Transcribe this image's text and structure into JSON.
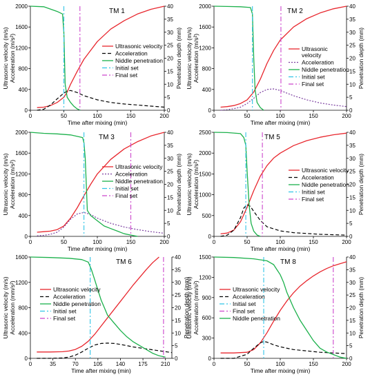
{
  "chart_data": [
    {
      "type": "line",
      "title": "TM 1",
      "xlabel": "Time after mixing (min)",
      "ylabel": "Ultrasonic velocity (m/s)\nAcceleration (m/s²)",
      "y2label": "Penetration depth (mm)",
      "xlim": [
        0,
        200
      ],
      "ylim": [
        0,
        2000
      ],
      "y2lim": [
        0,
        40
      ],
      "xticks": [
        0,
        50,
        100,
        150,
        200
      ],
      "yticks": [
        0,
        400,
        800,
        1200,
        1600,
        2000
      ],
      "y2ticks": [
        0,
        5,
        10,
        15,
        20,
        25,
        30,
        35,
        40
      ],
      "legend_position": "center-right",
      "series": [
        {
          "name": "Ultrasonic velocity",
          "axis": "left",
          "style": "solid",
          "color": "#e8262d",
          "x": [
            10,
            20,
            30,
            40,
            50,
            55,
            60,
            70,
            80,
            100,
            120,
            140,
            160,
            180,
            200
          ],
          "y": [
            50,
            60,
            90,
            150,
            250,
            350,
            500,
            750,
            980,
            1320,
            1560,
            1720,
            1850,
            1940,
            2000
          ]
        },
        {
          "name": "Acceleration",
          "axis": "left",
          "style": "dashed",
          "color": "#000000",
          "x": [
            10,
            20,
            30,
            40,
            50,
            55,
            60,
            70,
            80,
            100,
            120,
            140,
            160,
            180,
            200
          ],
          "y": [
            0,
            20,
            100,
            220,
            330,
            370,
            380,
            340,
            280,
            200,
            150,
            120,
            100,
            80,
            60
          ]
        },
        {
          "name": "Niddle penetration",
          "axis": "right",
          "style": "solid",
          "color": "#1ab04a",
          "x": [
            0,
            20,
            40,
            48,
            50,
            52,
            55,
            60,
            65,
            70,
            75
          ],
          "y": [
            40,
            39.8,
            38,
            37,
            30,
            10,
            5,
            3,
            1.5,
            0.5,
            0
          ]
        },
        {
          "name": "Initial set",
          "axis": "vline",
          "style": "dashdot",
          "color": "#2ec3e6",
          "x": [
            50
          ]
        },
        {
          "name": "Final set",
          "axis": "vline",
          "style": "dashdot",
          "color": "#cc44cc",
          "x": [
            74
          ]
        }
      ]
    },
    {
      "type": "line",
      "title": "TM 2",
      "xlabel": "Time after mixing (min)",
      "ylabel": "Ultrasonic velocity (m/s)\nAcceleration (m/s²)",
      "y2label": "Penetration depth (mm)",
      "xlim": [
        0,
        200
      ],
      "ylim": [
        0,
        2000
      ],
      "y2lim": [
        0,
        40
      ],
      "xticks": [
        0,
        50,
        100,
        150,
        200
      ],
      "yticks": [
        0,
        400,
        800,
        1200,
        1600,
        2000
      ],
      "y2ticks": [
        0,
        5,
        10,
        15,
        20,
        25,
        30,
        35,
        40
      ],
      "legend_position": "center-right",
      "series": [
        {
          "name": "Ultrasonic\nvelocity",
          "axis": "left",
          "style": "solid",
          "color": "#e8262d",
          "x": [
            10,
            20,
            30,
            40,
            50,
            60,
            70,
            80,
            90,
            100,
            120,
            140,
            160,
            180,
            200
          ],
          "y": [
            60,
            70,
            90,
            130,
            200,
            350,
            600,
            900,
            1150,
            1350,
            1600,
            1760,
            1870,
            1950,
            2000
          ]
        },
        {
          "name": "Acceleration",
          "axis": "left",
          "style": "dotted",
          "color": "#7b3fa0",
          "x": [
            10,
            20,
            30,
            40,
            50,
            60,
            70,
            80,
            90,
            100,
            120,
            140,
            160,
            180,
            200
          ],
          "y": [
            0,
            10,
            30,
            60,
            130,
            230,
            340,
            400,
            410,
            380,
            280,
            200,
            140,
            100,
            70
          ]
        },
        {
          "name": "Niddle penetration",
          "axis": "right",
          "style": "solid",
          "color": "#1ab04a",
          "x": [
            0,
            20,
            40,
            55,
            58,
            60,
            62,
            65,
            70,
            75
          ],
          "y": [
            40,
            39.9,
            39.8,
            39.5,
            37,
            20,
            8,
            3,
            1,
            0
          ]
        },
        {
          "name": "Initial set",
          "axis": "vline",
          "style": "dashdot",
          "color": "#2ec3e6",
          "x": [
            58
          ]
        },
        {
          "name": "Final set",
          "axis": "vline",
          "style": "dashdot",
          "color": "#cc44cc",
          "x": [
            101
          ]
        }
      ]
    },
    {
      "type": "line",
      "title": "TM 3",
      "xlabel": "Time after mixing (min)",
      "ylabel": "Ultrasonic velocity (m/s)\nAcceleration (m/s²)",
      "y2label": "Penetration depth (mm)",
      "xlim": [
        0,
        200
      ],
      "ylim": [
        0,
        2000
      ],
      "y2lim": [
        0,
        40
      ],
      "xticks": [
        0,
        50,
        100,
        150,
        200
      ],
      "yticks": [
        0,
        400,
        800,
        1200,
        1600,
        2000
      ],
      "y2ticks": [
        0,
        5,
        10,
        15,
        20,
        25,
        30,
        35,
        40
      ],
      "legend_position": "center-right",
      "series": [
        {
          "name": "Ultrasonic velocity",
          "axis": "left",
          "style": "solid",
          "color": "#e8262d",
          "x": [
            10,
            20,
            30,
            40,
            50,
            60,
            70,
            80,
            90,
            100,
            120,
            140,
            160,
            180,
            200
          ],
          "y": [
            80,
            90,
            100,
            130,
            200,
            350,
            550,
            780,
            1000,
            1200,
            1480,
            1680,
            1820,
            1930,
            2000
          ]
        },
        {
          "name": "Acceleration",
          "axis": "left",
          "style": "dotted",
          "color": "#7b3fa0",
          "x": [
            10,
            20,
            30,
            40,
            50,
            60,
            70,
            80,
            90,
            100,
            120,
            140,
            160,
            180,
            200
          ],
          "y": [
            10,
            20,
            40,
            80,
            180,
            330,
            430,
            460,
            420,
            350,
            250,
            180,
            130,
            90,
            60
          ]
        },
        {
          "name": "Niddle penetration",
          "axis": "right",
          "style": "solid",
          "color": "#1ab04a",
          "x": [
            0,
            20,
            40,
            60,
            78,
            80,
            82,
            85,
            90,
            100,
            110,
            120,
            130,
            140,
            150,
            160
          ],
          "y": [
            40,
            39.6,
            39.4,
            39,
            38,
            36,
            30,
            10,
            8,
            6,
            4,
            3,
            2,
            1,
            0.5,
            0
          ]
        },
        {
          "name": "Initial set",
          "axis": "vline",
          "style": "dashdot",
          "color": "#2ec3e6",
          "x": [
            80
          ]
        },
        {
          "name": "Final set",
          "axis": "vline",
          "style": "dashdot",
          "color": "#cc44cc",
          "x": [
            150
          ]
        }
      ]
    },
    {
      "type": "line",
      "title": "TM 5",
      "xlabel": "Time after mixing (min)",
      "ylabel": "Ultrasonic velocity (m/s)\nAcceleration (m/s²)",
      "y2label": "Penetration depth (mm)",
      "xlim": [
        0,
        200
      ],
      "ylim": [
        0,
        2500
      ],
      "y2lim": [
        0,
        40
      ],
      "xticks": [
        0,
        50,
        100,
        150,
        200
      ],
      "yticks": [
        0,
        500,
        1000,
        1500,
        2000,
        2500
      ],
      "y2ticks": [
        0,
        5,
        10,
        15,
        20,
        25,
        30,
        35,
        40
      ],
      "legend_position": "center-right",
      "series": [
        {
          "name": "Ultrasonic velocity",
          "axis": "left",
          "style": "solid",
          "color": "#e8262d",
          "x": [
            10,
            20,
            30,
            40,
            50,
            60,
            70,
            80,
            90,
            100,
            120,
            140,
            160,
            180,
            200
          ],
          "y": [
            60,
            80,
            150,
            350,
            700,
            1100,
            1450,
            1700,
            1880,
            2000,
            2180,
            2300,
            2380,
            2440,
            2480
          ]
        },
        {
          "name": "Acceleration",
          "axis": "left",
          "style": "dashed",
          "color": "#000000",
          "x": [
            10,
            20,
            30,
            40,
            45,
            50,
            55,
            60,
            70,
            80,
            100,
            120,
            140,
            160,
            180,
            200
          ],
          "y": [
            0,
            30,
            150,
            450,
            680,
            760,
            720,
            600,
            380,
            230,
            130,
            90,
            70,
            50,
            40,
            30
          ]
        },
        {
          "name": "Niddle penetration",
          "axis": "right",
          "style": "solid",
          "color": "#1ab04a",
          "x": [
            0,
            20,
            40,
            45,
            48,
            50,
            53,
            56,
            60,
            65,
            70
          ],
          "y": [
            40,
            39.9,
            39.5,
            38,
            35,
            25,
            12,
            5,
            2,
            0.5,
            0
          ]
        },
        {
          "name": "Initial set",
          "axis": "vline",
          "style": "dashdot",
          "color": "#2ec3e6",
          "x": [
            48
          ]
        },
        {
          "name": "Final set",
          "axis": "vline",
          "style": "dashdot",
          "color": "#cc44cc",
          "x": [
            73
          ]
        }
      ]
    },
    {
      "type": "line",
      "title": "TM 6",
      "xlabel": "Time after mixing (min)",
      "ylabel": "Ultrasonic velocity (m/s)\nAcceleration (mm/s²)",
      "y2label": "Penetration depth (mm)",
      "xlim": [
        0,
        220
      ],
      "ylim": [
        0,
        1600
      ],
      "y2lim": [
        0,
        40
      ],
      "xticks": [
        0,
        35,
        70,
        105,
        140,
        175,
        210
      ],
      "yticks": [
        0,
        400,
        800,
        1200,
        1600
      ],
      "y2ticks": [
        0,
        5,
        10,
        15,
        20,
        25,
        30,
        35,
        40
      ],
      "legend_position": "center-left",
      "series": [
        {
          "name": "Ultrasonic velocity",
          "axis": "left",
          "style": "solid",
          "color": "#e8262d",
          "x": [
            10,
            30,
            50,
            60,
            70,
            80,
            90,
            100,
            110,
            120,
            130,
            140,
            150,
            160,
            170,
            180,
            190,
            200
          ],
          "y": [
            100,
            100,
            105,
            115,
            140,
            190,
            270,
            380,
            510,
            640,
            770,
            900,
            1030,
            1160,
            1280,
            1400,
            1510,
            1600
          ]
        },
        {
          "name": "Acceleration",
          "axis": "left",
          "style": "dashed",
          "color": "#000000",
          "x": [
            10,
            30,
            50,
            60,
            70,
            80,
            90,
            100,
            110,
            120,
            130,
            140,
            150,
            160,
            180,
            200,
            220
          ],
          "y": [
            0,
            0,
            5,
            20,
            50,
            100,
            160,
            210,
            235,
            240,
            235,
            220,
            200,
            180,
            150,
            120,
            90
          ]
        },
        {
          "name": "Niddle penetration",
          "axis": "right",
          "style": "solid",
          "color": "#1ab04a",
          "x": [
            0,
            30,
            60,
            80,
            90,
            95,
            100,
            105,
            110,
            115,
            120,
            130,
            140,
            150,
            160,
            170,
            180,
            190,
            200,
            210
          ],
          "y": [
            40,
            39.8,
            39.5,
            39,
            38,
            35,
            31,
            27,
            23,
            20,
            17,
            14,
            11,
            8.5,
            6.5,
            5,
            3.5,
            2,
            1,
            0.5
          ]
        },
        {
          "name": "Initial set",
          "axis": "vline",
          "style": "dashdot",
          "color": "#2ec3e6",
          "x": [
            93
          ]
        },
        {
          "name": "Final set",
          "axis": "vline",
          "style": "dashdot",
          "color": "#cc44cc",
          "x": [
            207
          ]
        }
      ]
    },
    {
      "type": "line",
      "title": "TM 8",
      "xlabel": "Time after mixing (min)",
      "ylabel": "Ultrasonic velocity (m/s)\nAcceleration (mm/s²)",
      "y2label": "Penetration depth (mm)",
      "xlim": [
        0,
        200
      ],
      "ylim": [
        0,
        1500
      ],
      "y2lim": [
        0,
        40
      ],
      "xticks": [
        0,
        50,
        100,
        150,
        200
      ],
      "yticks": [
        0,
        300,
        600,
        900,
        1200,
        1500
      ],
      "y2ticks": [
        0,
        5,
        10,
        15,
        20,
        25,
        30,
        35,
        40
      ],
      "legend_position": "center-left",
      "series": [
        {
          "name": "Ultrasonic velocity",
          "axis": "left",
          "style": "solid",
          "color": "#e8262d",
          "x": [
            10,
            30,
            50,
            60,
            70,
            80,
            90,
            100,
            110,
            120,
            130,
            140,
            150,
            160,
            170,
            180,
            190,
            200
          ],
          "y": [
            80,
            80,
            90,
            130,
            230,
            380,
            550,
            710,
            850,
            970,
            1070,
            1150,
            1220,
            1280,
            1330,
            1370,
            1400,
            1430
          ]
        },
        {
          "name": "Acceleration",
          "axis": "left",
          "style": "dashed",
          "color": "#000000",
          "x": [
            10,
            30,
            50,
            60,
            70,
            75,
            80,
            90,
            100,
            120,
            140,
            160,
            180,
            200
          ],
          "y": [
            0,
            0,
            60,
            150,
            230,
            250,
            240,
            200,
            170,
            130,
            110,
            90,
            80,
            70
          ]
        },
        {
          "name": "Initial set",
          "axis": "vline",
          "style": "dashdot",
          "color": "#2ec3e6",
          "x": [
            75
          ]
        },
        {
          "name": "Final set",
          "axis": "vline",
          "style": "dashdot",
          "color": "#cc44cc",
          "x": [
            180
          ]
        },
        {
          "name": "Niddle penetration",
          "axis": "right",
          "style": "solid",
          "color": "#1ab04a",
          "x": [
            0,
            30,
            60,
            80,
            90,
            95,
            100,
            105,
            110,
            120,
            130,
            140,
            150,
            160,
            170,
            180,
            190,
            200
          ],
          "y": [
            40,
            39.8,
            39.3,
            38.5,
            37,
            35,
            33,
            30,
            26,
            20,
            15,
            11,
            7,
            4,
            2.5,
            1.5,
            0.5,
            0
          ]
        }
      ]
    }
  ]
}
